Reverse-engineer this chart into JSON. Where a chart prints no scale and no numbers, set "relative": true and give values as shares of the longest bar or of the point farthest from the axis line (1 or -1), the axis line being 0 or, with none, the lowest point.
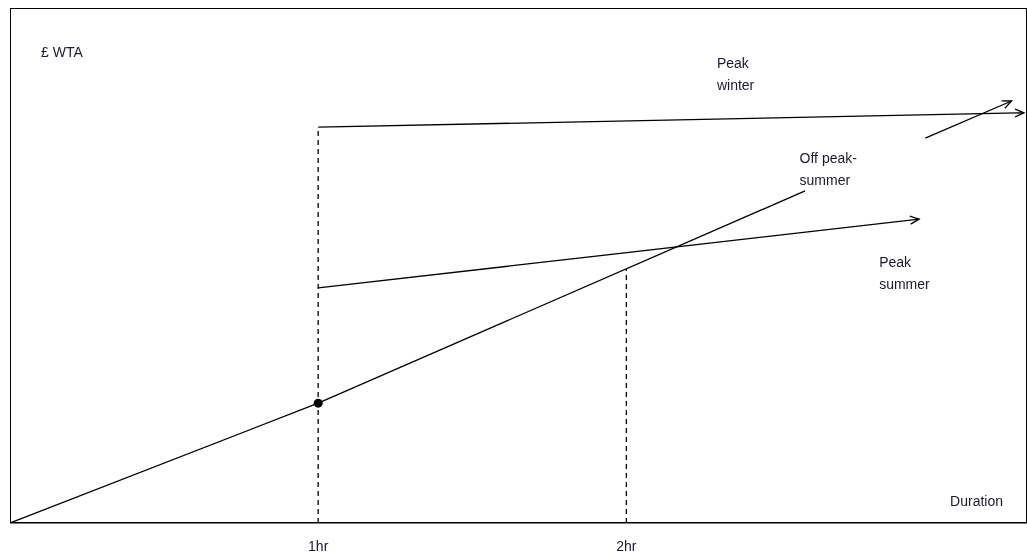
{
  "chart_data": {
    "type": "line",
    "relative": true,
    "xlabel": "Duration",
    "ylabel": "£ WTA",
    "xlim": [
      0,
      3.3
    ],
    "xticks": [
      {
        "value": 1,
        "label": "1hr"
      },
      {
        "value": 2,
        "label": "2hr"
      }
    ],
    "grid": false,
    "ref_lines": [
      {
        "axis": "x",
        "value": 1,
        "line_style": "dashed",
        "color": "#000000"
      },
      {
        "axis": "x",
        "value": 2,
        "line_style": "dashed",
        "color": "#000000"
      }
    ],
    "series": [
      {
        "name": "Peak winter",
        "color": "#000000",
        "x": [
          1,
          3.29
        ],
        "values": [
          0.938,
          0.972
        ]
      },
      {
        "name": "Off peak-summer",
        "color": "#000000",
        "x": [
          0,
          1,
          2.58,
          2.7,
          2.97,
          3.25
        ],
        "values": [
          0,
          0.284,
          0.787,
          null,
          0.912,
          1.0
        ]
      },
      {
        "name": "Peak summer",
        "color": "#000000",
        "x": [
          1,
          2.95
        ],
        "values": [
          0.557,
          0.72
        ]
      },
      {
        "type": "scatter",
        "marker": "circle",
        "color": "#000000",
        "x": [
          1
        ],
        "values": [
          0.284
        ]
      }
    ]
  }
}
